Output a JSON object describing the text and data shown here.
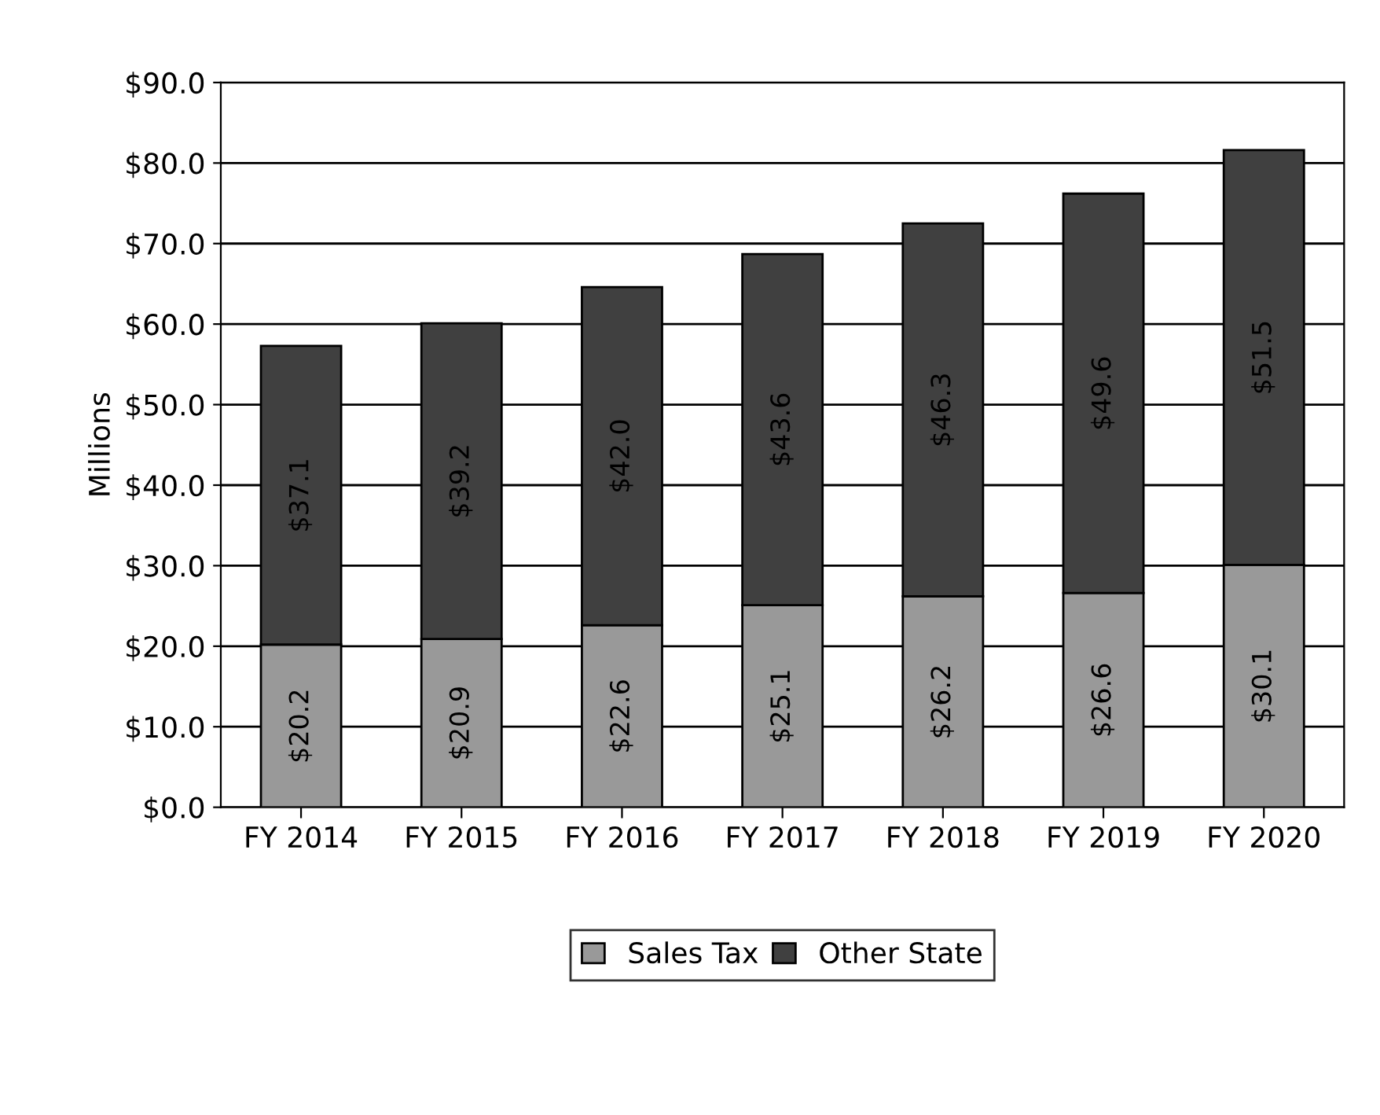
{
  "chart_data": {
    "type": "bar",
    "stacked": true,
    "ylabel": "Millions",
    "categories": [
      "FY 2014",
      "FY 2015",
      "FY 2016",
      "FY 2017",
      "FY 2018",
      "FY 2019",
      "FY 2020"
    ],
    "series": [
      {
        "name": "Sales Tax",
        "color": "#999999",
        "values": [
          20.2,
          20.9,
          22.6,
          25.1,
          26.2,
          26.6,
          30.1
        ],
        "value_labels": [
          "$20.2",
          "$20.9",
          "$22.6",
          "$25.1",
          "$26.2",
          "$26.6",
          "$30.1"
        ]
      },
      {
        "name": "Other State",
        "color": "#404040",
        "values": [
          37.1,
          39.2,
          42.0,
          43.6,
          46.3,
          49.6,
          51.5
        ],
        "value_labels": [
          "$37.1",
          "$39.2",
          "$42.0",
          "$43.6",
          "$46.3",
          "$49.6",
          "$51.5"
        ]
      }
    ],
    "ylim": [
      0,
      90
    ],
    "yticks": [
      {
        "value": 0,
        "label": "$0.0"
      },
      {
        "value": 10,
        "label": "$10.0"
      },
      {
        "value": 20,
        "label": "$20.0"
      },
      {
        "value": 30,
        "label": "$30.0"
      },
      {
        "value": 40,
        "label": "$40.0"
      },
      {
        "value": 50,
        "label": "$50.0"
      },
      {
        "value": 60,
        "label": "$60.0"
      },
      {
        "value": 70,
        "label": "$70.0"
      },
      {
        "value": 80,
        "label": "$80.0"
      },
      {
        "value": 90,
        "label": "$90.0"
      }
    ],
    "grid": "y",
    "legend": "bottom"
  }
}
